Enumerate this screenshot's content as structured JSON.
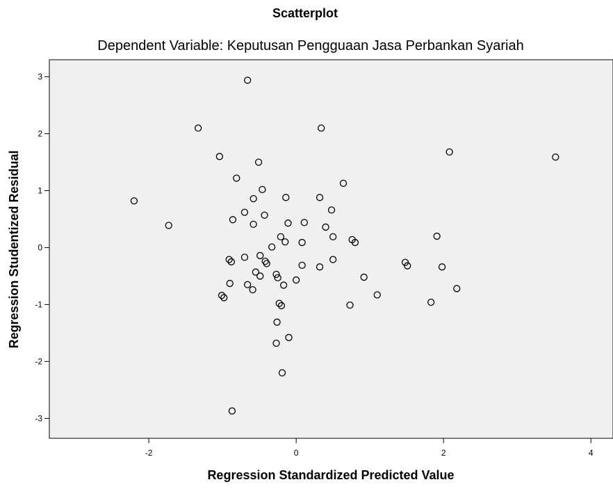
{
  "chart_data": {
    "type": "scatter",
    "title": "Scatterplot",
    "subtitle": "Dependent Variable: Keputusan Pengguaan Jasa Perbankan Syariah",
    "xlabel": "Regression Standardized Predicted Value",
    "ylabel": "Regression Studentized Residual",
    "xlim": [
      -3.35,
      4.3
    ],
    "ylim": [
      -3.35,
      3.3
    ],
    "xticks": [
      -2,
      0,
      2,
      4
    ],
    "yticks": [
      3,
      2,
      1,
      0,
      -1,
      -2,
      -3
    ],
    "xtick_labels": [
      "-2",
      "0",
      "2",
      "4"
    ],
    "ytick_labels": [
      "3",
      "2",
      "1",
      "0",
      "-1",
      "-2",
      "-3"
    ],
    "grid": false,
    "colors": {
      "plot_background": "#f0f0f0",
      "marker_stroke": "#000000",
      "axis": "#000000"
    },
    "points": [
      {
        "x": -0.66,
        "y": 2.94
      },
      {
        "x": -1.33,
        "y": 2.1
      },
      {
        "x": 0.34,
        "y": 2.1
      },
      {
        "x": 2.08,
        "y": 1.68
      },
      {
        "x": 3.52,
        "y": 1.59
      },
      {
        "x": -1.04,
        "y": 1.6
      },
      {
        "x": -0.51,
        "y": 1.5
      },
      {
        "x": -0.81,
        "y": 1.22
      },
      {
        "x": 0.64,
        "y": 1.13
      },
      {
        "x": -0.46,
        "y": 1.02
      },
      {
        "x": -2.2,
        "y": 0.82
      },
      {
        "x": -0.58,
        "y": 0.86
      },
      {
        "x": -0.14,
        "y": 0.88
      },
      {
        "x": 0.32,
        "y": 0.88
      },
      {
        "x": -0.7,
        "y": 0.62
      },
      {
        "x": 0.48,
        "y": 0.66
      },
      {
        "x": -0.43,
        "y": 0.57
      },
      {
        "x": -0.86,
        "y": 0.49
      },
      {
        "x": -1.73,
        "y": 0.39
      },
      {
        "x": -0.58,
        "y": 0.41
      },
      {
        "x": -0.11,
        "y": 0.43
      },
      {
        "x": 0.11,
        "y": 0.44
      },
      {
        "x": 0.4,
        "y": 0.36
      },
      {
        "x": -0.21,
        "y": 0.19
      },
      {
        "x": 0.5,
        "y": 0.19
      },
      {
        "x": 0.76,
        "y": 0.14
      },
      {
        "x": 0.8,
        "y": 0.09
      },
      {
        "x": 1.91,
        "y": 0.2
      },
      {
        "x": -0.15,
        "y": 0.1
      },
      {
        "x": 0.08,
        "y": 0.09
      },
      {
        "x": -0.33,
        "y": 0.01
      },
      {
        "x": -0.49,
        "y": -0.14
      },
      {
        "x": -0.7,
        "y": -0.17
      },
      {
        "x": -0.91,
        "y": -0.21
      },
      {
        "x": -0.88,
        "y": -0.25
      },
      {
        "x": -0.42,
        "y": -0.24
      },
      {
        "x": -0.4,
        "y": -0.28
      },
      {
        "x": 0.5,
        "y": -0.21
      },
      {
        "x": 1.48,
        "y": -0.26
      },
      {
        "x": 1.51,
        "y": -0.32
      },
      {
        "x": 0.08,
        "y": -0.31
      },
      {
        "x": 0.32,
        "y": -0.34
      },
      {
        "x": 1.98,
        "y": -0.34
      },
      {
        "x": -0.55,
        "y": -0.43
      },
      {
        "x": -0.27,
        "y": -0.47
      },
      {
        "x": -0.49,
        "y": -0.5
      },
      {
        "x": -0.25,
        "y": -0.53
      },
      {
        "x": 0.0,
        "y": -0.57
      },
      {
        "x": 0.92,
        "y": -0.52
      },
      {
        "x": -0.9,
        "y": -0.63
      },
      {
        "x": -0.66,
        "y": -0.65
      },
      {
        "x": -0.17,
        "y": -0.66
      },
      {
        "x": -0.59,
        "y": -0.74
      },
      {
        "x": 2.18,
        "y": -0.72
      },
      {
        "x": -1.01,
        "y": -0.84
      },
      {
        "x": -0.98,
        "y": -0.88
      },
      {
        "x": 1.1,
        "y": -0.83
      },
      {
        "x": -0.23,
        "y": -0.98
      },
      {
        "x": -0.2,
        "y": -1.02
      },
      {
        "x": 0.73,
        "y": -1.01
      },
      {
        "x": 1.83,
        "y": -0.96
      },
      {
        "x": -0.26,
        "y": -1.31
      },
      {
        "x": -0.1,
        "y": -1.58
      },
      {
        "x": -0.27,
        "y": -1.68
      },
      {
        "x": -0.19,
        "y": -2.2
      },
      {
        "x": -0.87,
        "y": -2.87
      }
    ]
  }
}
